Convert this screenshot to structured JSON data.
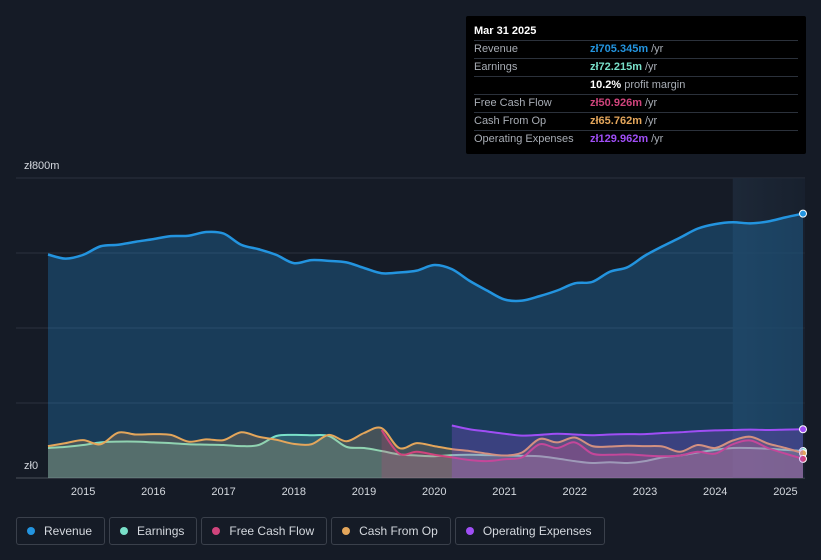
{
  "tooltip": {
    "date": "Mar 31 2025",
    "rows": [
      {
        "label": "Revenue",
        "value": "zł705.345m",
        "unit": "/yr",
        "color": "#2394df"
      },
      {
        "label": "Earnings",
        "value": "zł72.215m",
        "unit": "/yr",
        "color": "#79e0c9"
      },
      {
        "label": "",
        "value": "10.2%",
        "unit": "profit margin",
        "color": "#ffffff"
      },
      {
        "label": "Free Cash Flow",
        "value": "zł50.926m",
        "unit": "/yr",
        "color": "#d0447c"
      },
      {
        "label": "Cash From Op",
        "value": "zł65.762m",
        "unit": "/yr",
        "color": "#e4a65b"
      },
      {
        "label": "Operating Expenses",
        "value": "zł129.962m",
        "unit": "/yr",
        "color": "#9f4ef5"
      }
    ]
  },
  "legend": [
    {
      "label": "Revenue",
      "color": "#2394df"
    },
    {
      "label": "Earnings",
      "color": "#79e0c9"
    },
    {
      "label": "Free Cash Flow",
      "color": "#d0447c"
    },
    {
      "label": "Cash From Op",
      "color": "#e4a65b"
    },
    {
      "label": "Operating Expenses",
      "color": "#9f4ef5"
    }
  ],
  "chart_data": {
    "type": "area",
    "title": "",
    "xlabel": "",
    "ylabel": "",
    "ylim": [
      0,
      800
    ],
    "xlim": [
      2014.5,
      2025.25
    ],
    "y_tick_labels": [
      "zł800m",
      "zł0"
    ],
    "x_ticks": [
      2015,
      2016,
      2017,
      2018,
      2019,
      2020,
      2021,
      2022,
      2023,
      2024,
      2025
    ],
    "x_tick_labels": [
      "2015",
      "2016",
      "2017",
      "2018",
      "2019",
      "2020",
      "2021",
      "2022",
      "2023",
      "2024",
      "2025"
    ],
    "highlight_from": 2024.25,
    "series": [
      {
        "name": "Revenue",
        "color": "#2394df",
        "fill": true,
        "points": [
          [
            2014.5,
            596
          ],
          [
            2014.75,
            585
          ],
          [
            2015.0,
            595
          ],
          [
            2015.25,
            618
          ],
          [
            2015.5,
            622
          ],
          [
            2015.75,
            630
          ],
          [
            2016.0,
            637
          ],
          [
            2016.25,
            645
          ],
          [
            2016.5,
            646
          ],
          [
            2016.75,
            656
          ],
          [
            2017.0,
            652
          ],
          [
            2017.25,
            622
          ],
          [
            2017.5,
            610
          ],
          [
            2017.75,
            595
          ],
          [
            2018.0,
            573
          ],
          [
            2018.25,
            581
          ],
          [
            2018.5,
            579
          ],
          [
            2018.75,
            575
          ],
          [
            2019.0,
            560
          ],
          [
            2019.25,
            546
          ],
          [
            2019.5,
            548
          ],
          [
            2019.75,
            553
          ],
          [
            2020.0,
            568
          ],
          [
            2020.25,
            557
          ],
          [
            2020.5,
            526
          ],
          [
            2020.75,
            500
          ],
          [
            2021.0,
            476
          ],
          [
            2021.25,
            473
          ],
          [
            2021.5,
            485
          ],
          [
            2021.75,
            500
          ],
          [
            2022.0,
            519
          ],
          [
            2022.25,
            523
          ],
          [
            2022.5,
            550
          ],
          [
            2022.75,
            562
          ],
          [
            2023.0,
            593
          ],
          [
            2023.25,
            618
          ],
          [
            2023.5,
            641
          ],
          [
            2023.75,
            665
          ],
          [
            2024.0,
            677
          ],
          [
            2024.25,
            682
          ],
          [
            2024.5,
            679
          ],
          [
            2024.75,
            684
          ],
          [
            2025.0,
            695
          ],
          [
            2025.25,
            705
          ]
        ]
      },
      {
        "name": "Earnings",
        "color": "#79e0c9",
        "fill": true,
        "points": [
          [
            2014.5,
            80
          ],
          [
            2014.75,
            83
          ],
          [
            2015.0,
            88
          ],
          [
            2015.25,
            95
          ],
          [
            2015.5,
            97
          ],
          [
            2015.75,
            97
          ],
          [
            2016.0,
            95
          ],
          [
            2016.25,
            93
          ],
          [
            2016.5,
            90
          ],
          [
            2016.75,
            89
          ],
          [
            2017.0,
            88
          ],
          [
            2017.25,
            85
          ],
          [
            2017.5,
            88
          ],
          [
            2017.75,
            112
          ],
          [
            2018.0,
            115
          ],
          [
            2018.25,
            114
          ],
          [
            2018.5,
            112
          ],
          [
            2018.75,
            83
          ],
          [
            2019.0,
            80
          ],
          [
            2019.25,
            72
          ],
          [
            2019.5,
            63
          ],
          [
            2019.75,
            60
          ],
          [
            2020.0,
            58
          ],
          [
            2020.25,
            61
          ],
          [
            2020.5,
            62
          ],
          [
            2020.75,
            61
          ],
          [
            2021.0,
            60
          ],
          [
            2021.25,
            59
          ],
          [
            2021.5,
            58
          ],
          [
            2021.75,
            52
          ],
          [
            2022.0,
            45
          ],
          [
            2022.25,
            40
          ],
          [
            2022.5,
            42
          ],
          [
            2022.75,
            40
          ],
          [
            2023.0,
            45
          ],
          [
            2023.25,
            55
          ],
          [
            2023.5,
            60
          ],
          [
            2023.75,
            68
          ],
          [
            2024.0,
            75
          ],
          [
            2024.25,
            80
          ],
          [
            2024.5,
            80
          ],
          [
            2024.75,
            78
          ],
          [
            2025.0,
            75
          ],
          [
            2025.25,
            72
          ]
        ]
      },
      {
        "name": "Cash From Op",
        "color": "#e4a65b",
        "fill": true,
        "points": [
          [
            2014.5,
            85
          ],
          [
            2014.75,
            93
          ],
          [
            2015.0,
            101
          ],
          [
            2015.25,
            90
          ],
          [
            2015.5,
            121
          ],
          [
            2015.75,
            116
          ],
          [
            2016.0,
            117
          ],
          [
            2016.25,
            115
          ],
          [
            2016.5,
            97
          ],
          [
            2016.75,
            103
          ],
          [
            2017.0,
            101
          ],
          [
            2017.25,
            122
          ],
          [
            2017.5,
            110
          ],
          [
            2017.75,
            102
          ],
          [
            2018.0,
            91
          ],
          [
            2018.25,
            90
          ],
          [
            2018.5,
            115
          ],
          [
            2018.75,
            98
          ],
          [
            2019.0,
            120
          ],
          [
            2019.25,
            133
          ],
          [
            2019.5,
            80
          ],
          [
            2019.75,
            93
          ],
          [
            2020.0,
            85
          ],
          [
            2020.25,
            77
          ],
          [
            2020.5,
            72
          ],
          [
            2020.75,
            65
          ],
          [
            2021.0,
            60
          ],
          [
            2021.25,
            68
          ],
          [
            2021.5,
            104
          ],
          [
            2021.75,
            95
          ],
          [
            2022.0,
            108
          ],
          [
            2022.25,
            85
          ],
          [
            2022.5,
            84
          ],
          [
            2022.75,
            86
          ],
          [
            2023.0,
            85
          ],
          [
            2023.25,
            84
          ],
          [
            2023.5,
            70
          ],
          [
            2023.75,
            88
          ],
          [
            2024.0,
            80
          ],
          [
            2024.25,
            100
          ],
          [
            2024.5,
            110
          ],
          [
            2024.75,
            92
          ],
          [
            2025.0,
            80
          ],
          [
            2025.25,
            66
          ]
        ]
      },
      {
        "name": "Free Cash Flow",
        "color": "#d0447c",
        "fill": true,
        "points": [
          [
            2019.25,
            128
          ],
          [
            2019.5,
            65
          ],
          [
            2019.75,
            70
          ],
          [
            2020.0,
            62
          ],
          [
            2020.25,
            55
          ],
          [
            2020.5,
            48
          ],
          [
            2020.75,
            45
          ],
          [
            2021.0,
            50
          ],
          [
            2021.25,
            55
          ],
          [
            2021.5,
            90
          ],
          [
            2021.75,
            80
          ],
          [
            2022.0,
            95
          ],
          [
            2022.25,
            65
          ],
          [
            2022.5,
            62
          ],
          [
            2022.75,
            63
          ],
          [
            2023.0,
            60
          ],
          [
            2023.25,
            58
          ],
          [
            2023.5,
            60
          ],
          [
            2023.75,
            70
          ],
          [
            2024.0,
            65
          ],
          [
            2024.25,
            90
          ],
          [
            2024.5,
            100
          ],
          [
            2024.75,
            80
          ],
          [
            2025.0,
            65
          ],
          [
            2025.25,
            51
          ]
        ]
      },
      {
        "name": "Operating Expenses",
        "color": "#9f4ef5",
        "fill": true,
        "points": [
          [
            2020.25,
            140
          ],
          [
            2020.5,
            130
          ],
          [
            2020.75,
            124
          ],
          [
            2021.0,
            118
          ],
          [
            2021.25,
            113
          ],
          [
            2021.5,
            115
          ],
          [
            2021.75,
            118
          ],
          [
            2022.0,
            116
          ],
          [
            2022.25,
            114
          ],
          [
            2022.5,
            116
          ],
          [
            2022.75,
            117
          ],
          [
            2023.0,
            117
          ],
          [
            2023.25,
            120
          ],
          [
            2023.5,
            122
          ],
          [
            2023.75,
            125
          ],
          [
            2024.0,
            127
          ],
          [
            2024.25,
            128
          ],
          [
            2024.5,
            129
          ],
          [
            2024.75,
            128
          ],
          [
            2025.0,
            129
          ],
          [
            2025.25,
            130
          ]
        ]
      }
    ]
  }
}
